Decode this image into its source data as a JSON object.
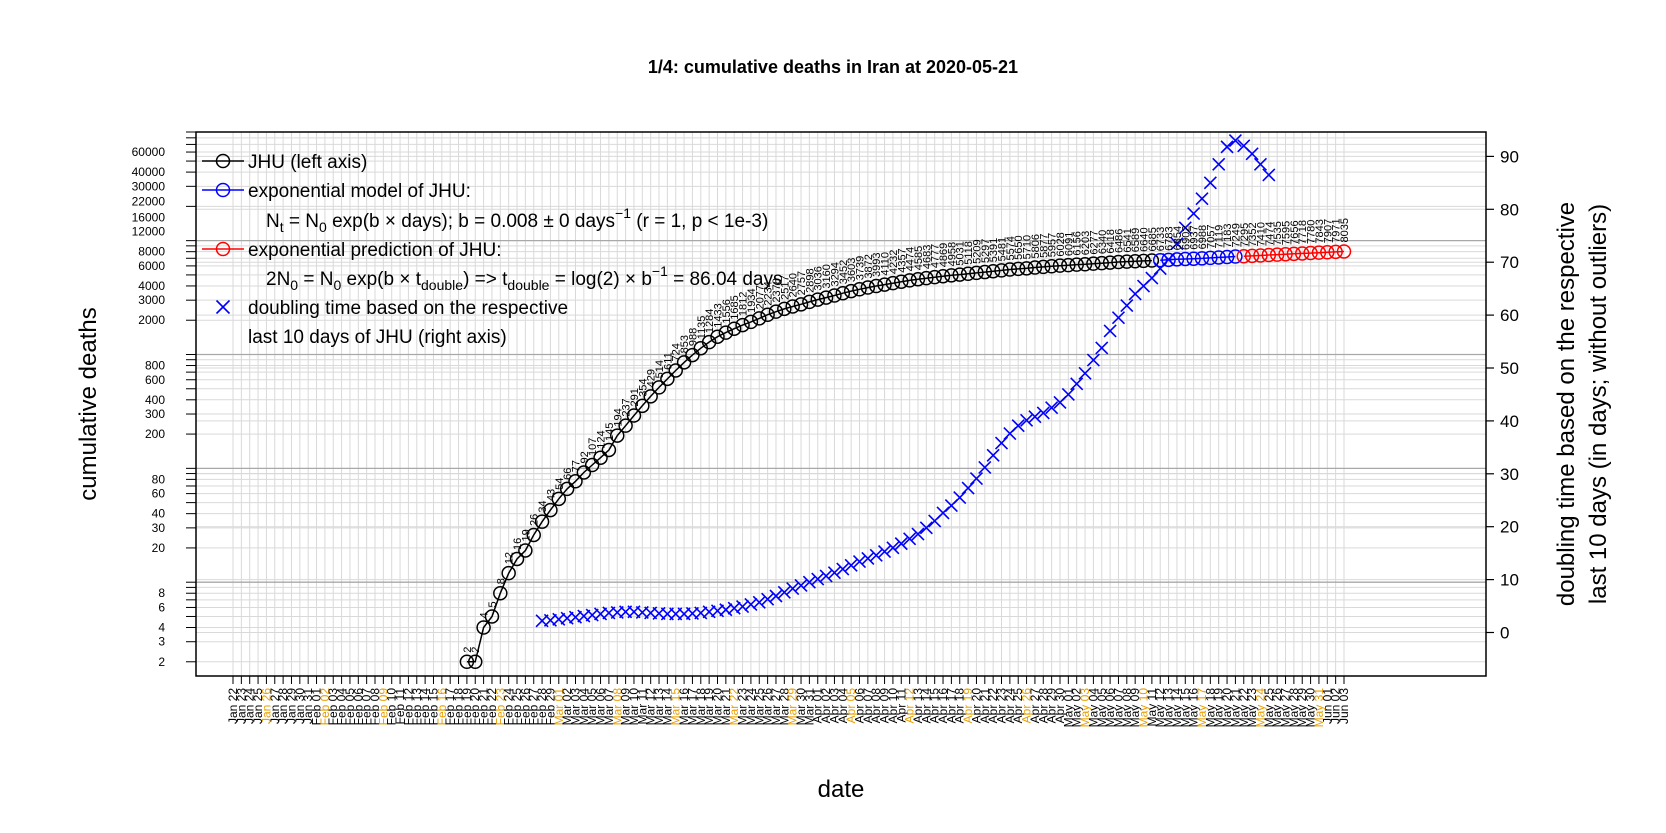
{
  "chart_data": {
    "type": "line",
    "title": "1/4: cumulative deaths in Iran at 2020-05-21",
    "xlabel": "date",
    "ylabel": "cumulative deaths",
    "ylabel_right": [
      "doubling time based on the respective",
      "last 10 days (in days; without outliers)"
    ],
    "x_range": [
      "2020-01-22",
      "2020-06-03"
    ],
    "highlight_color": "#e69f00",
    "y_left": {
      "scale": "log",
      "range": [
        1.5,
        90000
      ],
      "tick_labels": [
        "2",
        "3",
        "4",
        "6",
        "8",
        "20",
        "30",
        "40",
        "60",
        "80",
        "200",
        "300",
        "400",
        "600",
        "800",
        "2000",
        "3000",
        "4000",
        "6000",
        "8000",
        "12000",
        "16000",
        "22000",
        "30000",
        "40000",
        "60000"
      ]
    },
    "y_right": {
      "scale": "linear",
      "range": [
        0,
        95
      ],
      "ticks": [
        0,
        10,
        20,
        30,
        40,
        50,
        60,
        70,
        80,
        90
      ]
    },
    "grid": true,
    "legend": {
      "position": "top-left",
      "entries": [
        {
          "text": "JHU (left axis)",
          "color": "#000000",
          "marker": "circle-line"
        },
        {
          "text": "exponential model of JHU:",
          "color": "#0000ff",
          "marker": "circle-line"
        },
        {
          "text": "exponential prediction of JHU:",
          "color": "#ff0000",
          "marker": "circle-line"
        },
        {
          "text": "doubling time based on the respective",
          "text2": "last 10 days of JHU (right axis)",
          "color": "#0000ff",
          "marker": "cross"
        }
      ],
      "model_formula": {
        "p1": "N",
        "s1": "t",
        "p2": " = N",
        "s2": "0",
        "p3": " exp(b × days); b = 0.008 ± 0 days",
        "sup": "−1",
        "p4": " (r = 1, p < 1e-3)"
      },
      "prediction_formula": {
        "p1": "2N",
        "s1": "0",
        "p2": " = N",
        "s2": "0",
        "p3": " exp(b × t",
        "s3": "double",
        "p4": ") => t",
        "s4": "double",
        "p5": " = log(2) × b",
        "sup": "−1",
        "p6": " = 86.04 days"
      }
    },
    "series": [
      {
        "name": "JHU (left axis)",
        "color": "#000000",
        "x": [
          "2020-02-19",
          "2020-02-20",
          "2020-02-21",
          "2020-02-22",
          "2020-02-23",
          "2020-02-24",
          "2020-02-25",
          "2020-02-26",
          "2020-02-27",
          "2020-02-28",
          "2020-02-29",
          "2020-03-01",
          "2020-03-02",
          "2020-03-03",
          "2020-03-04",
          "2020-03-05",
          "2020-03-06",
          "2020-03-07",
          "2020-03-08",
          "2020-03-09",
          "2020-03-10",
          "2020-03-11",
          "2020-03-12",
          "2020-03-13",
          "2020-03-14",
          "2020-03-15",
          "2020-03-16",
          "2020-03-17",
          "2020-03-18",
          "2020-03-19",
          "2020-03-20",
          "2020-03-21",
          "2020-03-22",
          "2020-03-23",
          "2020-03-24",
          "2020-03-25",
          "2020-03-26",
          "2020-03-27",
          "2020-03-28",
          "2020-03-29",
          "2020-03-30",
          "2020-03-31",
          "2020-04-01",
          "2020-04-02",
          "2020-04-03",
          "2020-04-04",
          "2020-04-05",
          "2020-04-06",
          "2020-04-07",
          "2020-04-08",
          "2020-04-09",
          "2020-04-10",
          "2020-04-11",
          "2020-04-12",
          "2020-04-13",
          "2020-04-14",
          "2020-04-15",
          "2020-04-16",
          "2020-04-17",
          "2020-04-18",
          "2020-04-19",
          "2020-04-20",
          "2020-04-21",
          "2020-04-22",
          "2020-04-23",
          "2020-04-24",
          "2020-04-25",
          "2020-04-26",
          "2020-04-27",
          "2020-04-28",
          "2020-04-29",
          "2020-04-30",
          "2020-05-01",
          "2020-05-02",
          "2020-05-03",
          "2020-05-04",
          "2020-05-05",
          "2020-05-06",
          "2020-05-07",
          "2020-05-08",
          "2020-05-09",
          "2020-05-10",
          "2020-05-11"
        ],
        "values": [
          2,
          2,
          4,
          5,
          8,
          12,
          16,
          19,
          26,
          34,
          43,
          54,
          66,
          77,
          92,
          107,
          124,
          145,
          194,
          237,
          291,
          354,
          429,
          514,
          611,
          724,
          853,
          988,
          1135,
          1284,
          1433,
          1556,
          1685,
          1812,
          1934,
          2077,
          2234,
          2378,
          2517,
          2640,
          2757,
          2898,
          3036,
          3160,
          3294,
          3452,
          3603,
          3739,
          3872,
          3993,
          4110,
          4232,
          4357,
          4474,
          4585,
          4683,
          4777,
          4869,
          4958,
          5031,
          5118,
          5209,
          5297,
          5391,
          5481,
          5574,
          5650,
          5710,
          5806,
          5877,
          5957,
          6028,
          6091,
          6156,
          6203,
          6277,
          6340,
          6418,
          6486,
          6541,
          6589,
          6640,
          6685
        ]
      },
      {
        "name": "exponential model of JHU:",
        "color": "#0000ff",
        "x": [
          "2020-05-12",
          "2020-05-13",
          "2020-05-14",
          "2020-05-15",
          "2020-05-16",
          "2020-05-17",
          "2020-05-18",
          "2020-05-19",
          "2020-05-20",
          "2020-05-21"
        ],
        "values": [
          6733,
          6783,
          6854,
          6902,
          6937,
          6988,
          7057,
          7119,
          7183,
          7249
        ]
      },
      {
        "name": "exponential prediction of JHU:",
        "color": "#ff0000",
        "x": [
          "2020-05-22",
          "2020-05-23",
          "2020-05-24",
          "2020-05-25",
          "2020-05-26",
          "2020-05-27",
          "2020-05-28",
          "2020-05-29",
          "2020-05-30",
          "2020-05-31",
          "2020-06-01",
          "2020-06-02",
          "2020-06-03"
        ],
        "values": [
          7295,
          7352,
          7410,
          7474,
          7535,
          7595,
          7656,
          7718,
          7780,
          7843,
          7907,
          7971,
          8035
        ]
      },
      {
        "name": "doubling time based on the respective last 10 days of JHU (right axis)",
        "color": "#0000ff",
        "marker": "cross",
        "x_start": "2020-02-28",
        "values": [
          2.2,
          2.3,
          2.5,
          2.7,
          2.9,
          3.1,
          3.3,
          3.5,
          3.7,
          3.8,
          3.9,
          3.9,
          3.8,
          3.7,
          3.6,
          3.5,
          3.5,
          3.5,
          3.6,
          3.7,
          3.9,
          4.1,
          4.3,
          4.6,
          4.9,
          5.3,
          5.7,
          6.3,
          6.9,
          7.6,
          8.3,
          8.9,
          9.5,
          10.1,
          10.7,
          11.3,
          12.0,
          12.7,
          13.4,
          14.0,
          14.6,
          15.3,
          16.0,
          16.8,
          17.7,
          18.6,
          19.8,
          21.1,
          22.6,
          24.0,
          25.5,
          27.3,
          29.1,
          31.2,
          33.5,
          35.8,
          37.6,
          39.1,
          40.1,
          40.8,
          41.5,
          42.5,
          43.5,
          45.0,
          47.0,
          49.0,
          51.5,
          53.8,
          57.0,
          59.5,
          61.8,
          64.0,
          65.5,
          67.0,
          68.8,
          70.5,
          73.5,
          76.5,
          79.2,
          82.0,
          85.0,
          88.5,
          91.8,
          93.0,
          92.0,
          90.5,
          88.5,
          86.5
        ]
      }
    ],
    "data_labels": [
      {
        "series": 0,
        "from": "2020-02-19",
        "values": [
          "2",
          "2",
          "4",
          "5",
          "8",
          "12",
          "16",
          "19",
          "26",
          "34",
          "43",
          "54",
          "66",
          "77",
          "92",
          "107",
          "124",
          "145",
          "194",
          "237",
          "291",
          "354",
          "429",
          "514",
          "611",
          "724",
          "853",
          "988",
          "1135",
          "1284",
          "1433",
          "1556",
          "1685",
          "1812",
          "1934",
          "2077",
          "2234",
          "2378",
          "2517",
          "2640",
          "2757",
          "2898",
          "3036",
          "3160",
          "3294",
          "3452",
          "3603",
          "3739",
          "3872",
          "3993",
          "4110",
          "4232",
          "4357",
          "4474",
          "4585",
          "4683",
          "4777",
          "4869",
          "4958",
          "5031",
          "5118",
          "5209",
          "5297",
          "5391",
          "5481",
          "5574",
          "5650",
          "5710",
          "5806",
          "5877",
          "5957",
          "6028",
          "6091",
          "6156",
          "6203",
          "6277",
          "6340",
          "6418",
          "6486",
          "6541",
          "6589",
          "6640",
          "6685"
        ]
      },
      {
        "series": 1,
        "from": "2020-05-12",
        "values": [
          "6733",
          "6783",
          "6854",
          "6902",
          "6937",
          "6988",
          "7057",
          "7119",
          "7183",
          "7249"
        ]
      },
      {
        "series": 2,
        "from": "2020-05-22",
        "values": [
          "7295",
          "7352",
          "7410",
          "7474",
          "7535",
          "7595",
          "7656",
          "7718",
          "7780",
          "7843",
          "7907",
          "7971",
          "8035"
        ]
      }
    ]
  }
}
